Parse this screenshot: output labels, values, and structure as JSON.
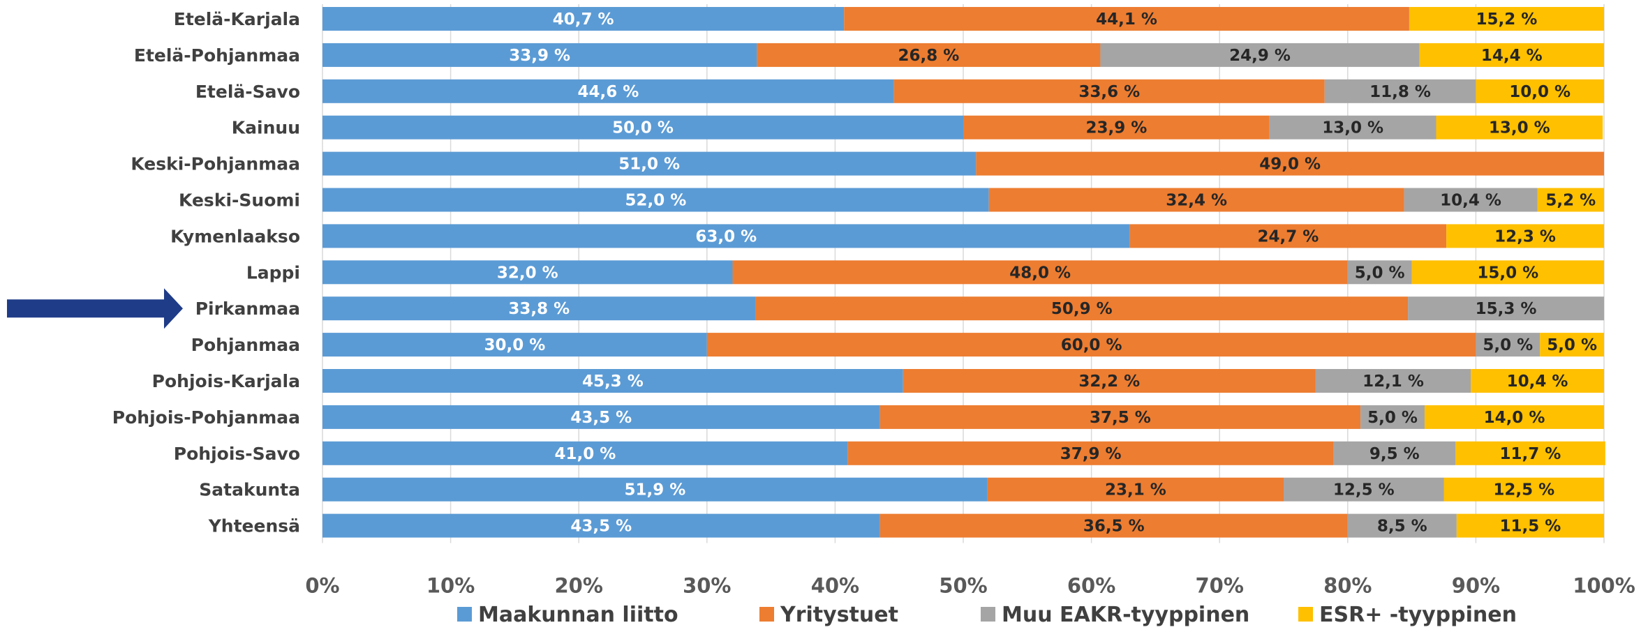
{
  "chart_data": {
    "type": "bar",
    "orientation": "horizontal",
    "stacked": "percent",
    "categories": [
      "Etelä-Karjala",
      "Etelä-Pohjanmaa",
      "Etelä-Savo",
      "Kainuu",
      "Keski-Pohjanmaa",
      "Keski-Suomi",
      "Kymenlaakso",
      "Lappi",
      "Pirkanmaa",
      "Pohjanmaa",
      "Pohjois-Karjala",
      "Pohjois-Pohjanmaa",
      "Pohjois-Savo",
      "Satakunta",
      "Yhteensä"
    ],
    "series": [
      {
        "name": "Maakunnan liitto",
        "color": "#5B9BD5",
        "label_color": "#ffffff",
        "values": [
          40.7,
          33.9,
          44.6,
          50.0,
          51.0,
          52.0,
          63.0,
          32.0,
          33.8,
          30.0,
          45.3,
          43.5,
          41.0,
          51.9,
          43.5
        ],
        "labels": [
          "40,7 %",
          "33,9 %",
          "44,6 %",
          "50,0 %",
          "51,0 %",
          "52,0 %",
          "63,0 %",
          "32,0 %",
          "33,8 %",
          "30,0 %",
          "45,3 %",
          "43,5 %",
          "41,0 %",
          "51,9 %",
          "43,5 %"
        ]
      },
      {
        "name": "Yritystuet",
        "color": "#ED7D31",
        "label_color": "#262626",
        "values": [
          44.1,
          26.8,
          33.6,
          23.9,
          49.0,
          32.4,
          24.7,
          48.0,
          50.9,
          60.0,
          32.2,
          37.5,
          37.9,
          23.1,
          36.5
        ],
        "labels": [
          "44,1 %",
          "26,8 %",
          "33,6 %",
          "23,9 %",
          "49,0 %",
          "32,4 %",
          "24,7 %",
          "48,0 %",
          "50,9 %",
          "60,0 %",
          "32,2 %",
          "37,5 %",
          "37,9 %",
          "23,1 %",
          "36,5 %"
        ]
      },
      {
        "name": "Muu EAKR-tyyppinen",
        "color": "#A5A5A5",
        "label_color": "#262626",
        "values": [
          0,
          24.9,
          11.8,
          13.0,
          0,
          10.4,
          0,
          5.0,
          15.3,
          5.0,
          12.1,
          5.0,
          9.5,
          12.5,
          8.5
        ],
        "labels": [
          "",
          "24,9 %",
          "11,8 %",
          "13,0 %",
          "",
          "10,4 %",
          "",
          "5,0 %",
          "15,3 %",
          "5,0 %",
          "12,1 %",
          "5,0 %",
          "9,5 %",
          "12,5 %",
          "8,5 %"
        ]
      },
      {
        "name": "ESR+ -tyyppinen",
        "color": "#FFC000",
        "label_color": "#262626",
        "values": [
          15.2,
          14.4,
          10.0,
          13.0,
          0,
          5.2,
          12.3,
          15.0,
          0,
          5.0,
          10.4,
          14.0,
          11.7,
          12.5,
          11.5
        ],
        "labels": [
          "15,2 %",
          "14,4 %",
          "10,0 %",
          "13,0 %",
          "",
          "5,2 %",
          "12,3 %",
          "15,0 %",
          "",
          "5,0 %",
          "10,4 %",
          "14,0 %",
          "11,7 %",
          "12,5 %",
          "11,5 %"
        ]
      }
    ],
    "xlim": [
      0,
      100
    ],
    "xticks": [
      "0%",
      "10%",
      "20%",
      "30%",
      "40%",
      "50%",
      "60%",
      "70%",
      "80%",
      "90%",
      "100%"
    ],
    "grid": "vertical",
    "legend_position": "bottom",
    "highlight": {
      "category": "Pirkanmaa",
      "marker": "arrow",
      "color": "#1F3C88"
    }
  }
}
